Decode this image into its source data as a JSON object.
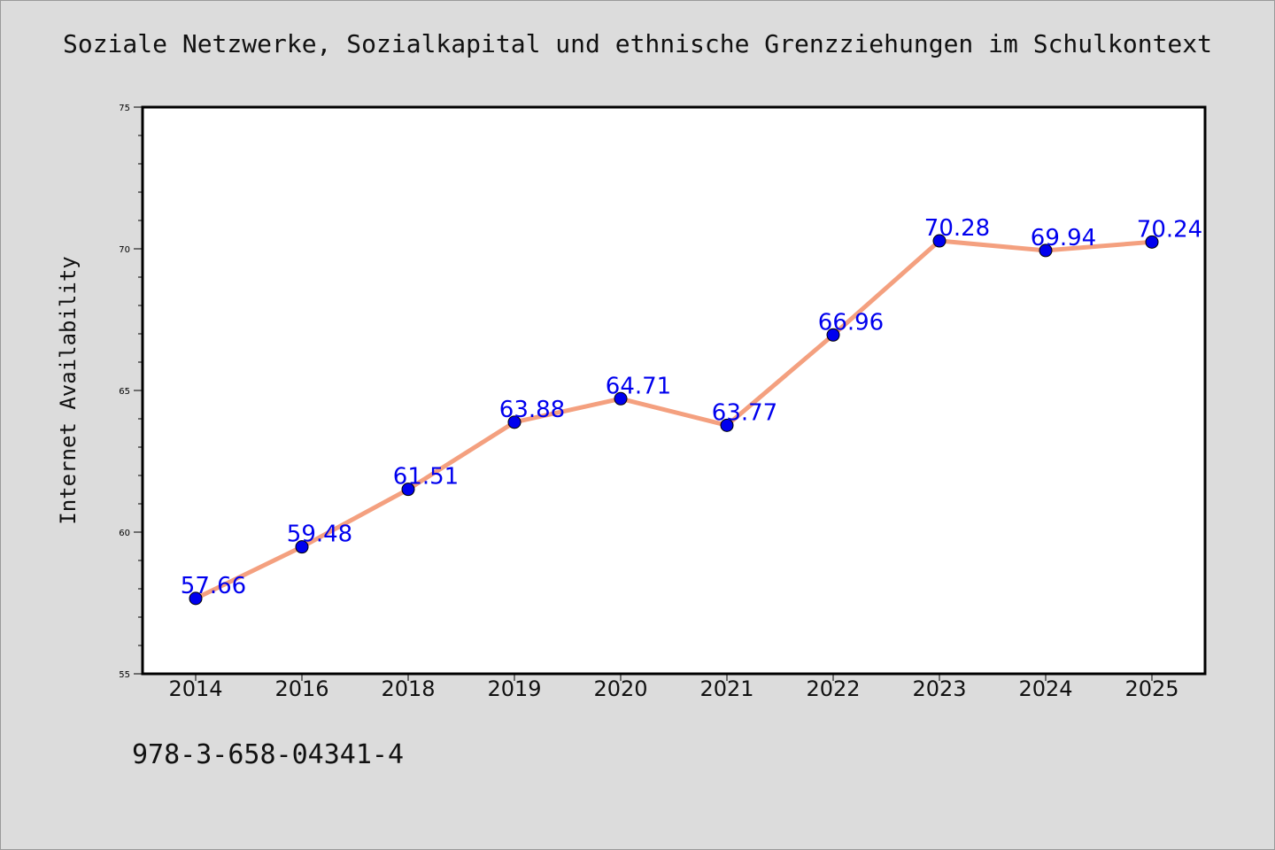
{
  "page": {
    "background": "#dcdcdc",
    "footer_code": "978-3-658-04341-4"
  },
  "chart_data": {
    "type": "line",
    "title": "Soziale Netzwerke, Sozialkapital und ethnische Grenzziehungen im Schulkontext",
    "xlabel": "",
    "ylabel": "Internet Availability",
    "categories": [
      "2014",
      "2016",
      "2018",
      "2019",
      "2020",
      "2021",
      "2022",
      "2023",
      "2024",
      "2025"
    ],
    "series": [
      {
        "values": [
          57.66,
          59.48,
          61.51,
          63.88,
          64.71,
          63.77,
          66.96,
          70.28,
          69.94,
          70.24
        ],
        "labels": [
          "57.66",
          "59.48",
          "61.51",
          "63.88",
          "64.71",
          "63.77",
          "66.96",
          "70.28",
          "69.94",
          "70.24"
        ],
        "line_color": "#f4a07f",
        "marker_color": "#0000ee",
        "label_color": "#0000ee"
      }
    ],
    "ylim": [
      55,
      75
    ],
    "y_ticks": [
      "55",
      "60",
      "65",
      "70",
      "75"
    ],
    "y_minor_step": 1,
    "grid": false,
    "legend": "none"
  }
}
